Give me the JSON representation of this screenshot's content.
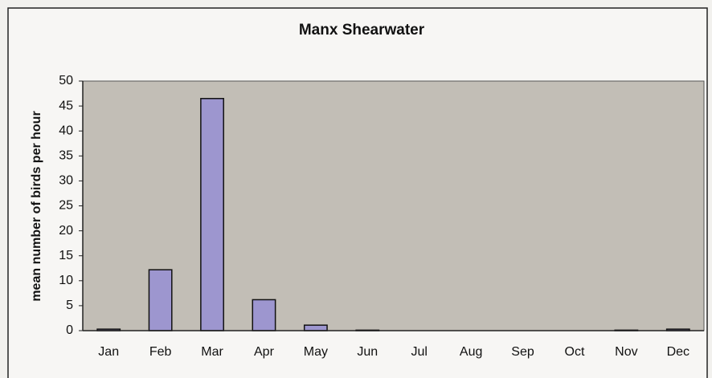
{
  "chart_data": {
    "type": "bar",
    "title": "Manx Shearwater",
    "y_label": "mean number of birds per hour",
    "categories": [
      "Jan",
      "Feb",
      "Mar",
      "Apr",
      "May",
      "Jun",
      "Jul",
      "Aug",
      "Sep",
      "Oct",
      "Nov",
      "Dec"
    ],
    "values": [
      0.3,
      12.2,
      46.5,
      6.2,
      1.1,
      0.1,
      0,
      0,
      0,
      0,
      0.1,
      0.3
    ],
    "color": "#9d96cf",
    "ylim": [
      0,
      50
    ],
    "yticks": [
      0,
      5,
      10,
      15,
      20,
      25,
      30,
      35,
      40,
      45,
      50
    ],
    "grid": false
  }
}
